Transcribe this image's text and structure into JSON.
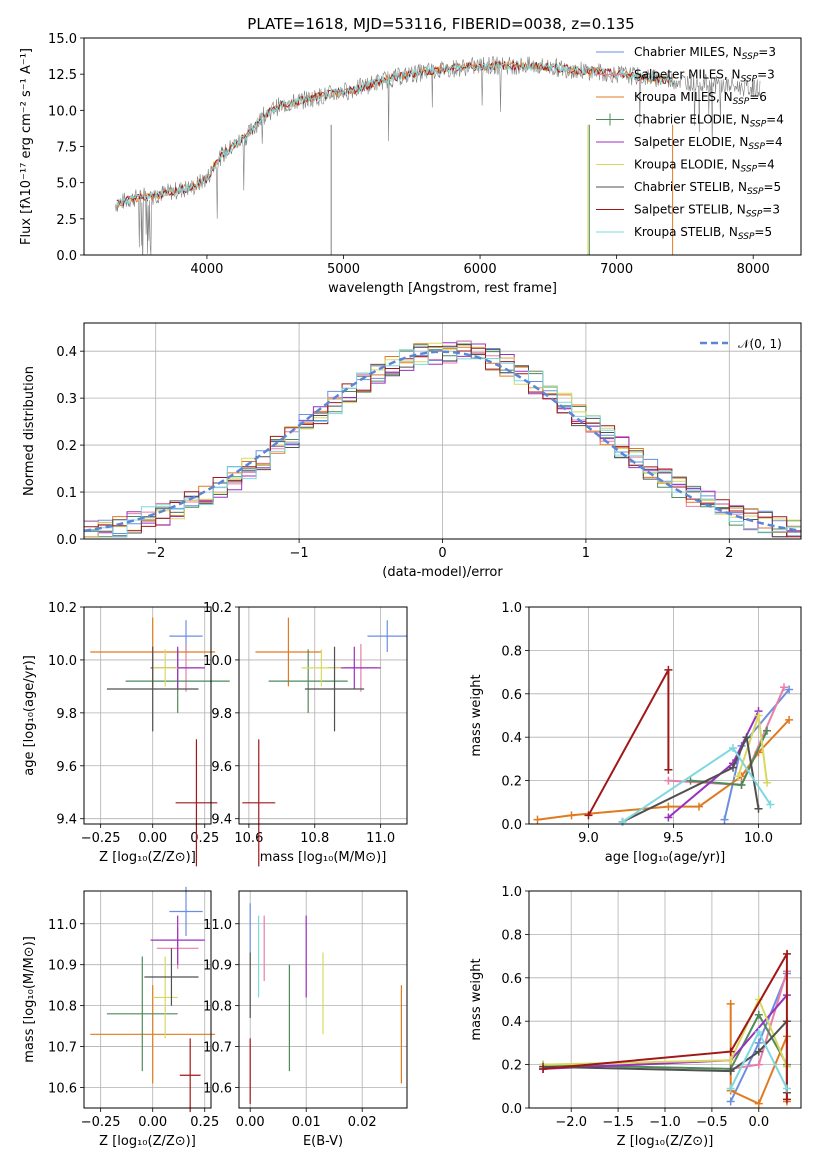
{
  "figure": {
    "title": "PLATE=1618, MJD=53116, FIBERID=0038, z=0.135"
  },
  "colors": {
    "c0": "#6b8fe0",
    "c1": "#e87fa8",
    "c2": "#e07a20",
    "c3": "#4f8a5a",
    "c4": "#9b30c0",
    "c5": "#d8d860",
    "c6": "#505050",
    "c7": "#a01818",
    "c8": "#7fd8e0"
  },
  "chart_data": [
    {
      "id": "spectrum",
      "type": "line",
      "xlabel": "wavelength [Angstrom, rest frame]",
      "ylabel": "Flux [fλ10⁻¹⁷ erg cm⁻² s⁻¹ A⁻¹]",
      "xlim": [
        3100,
        8350
      ],
      "ylim": [
        0,
        15
      ],
      "xticks": [
        "4000",
        "5000",
        "6000",
        "7000",
        "8000"
      ],
      "yticks": [
        "0.0",
        "2.5",
        "5.0",
        "7.5",
        "10.0",
        "12.5",
        "15.0"
      ],
      "continuum": [
        [
          3300,
          3.4
        ],
        [
          3450,
          3.9
        ],
        [
          3600,
          4.1
        ],
        [
          3750,
          4.4
        ],
        [
          3900,
          4.7
        ],
        [
          4000,
          5.3
        ],
        [
          4100,
          6.8
        ],
        [
          4200,
          7.6
        ],
        [
          4300,
          8.3
        ],
        [
          4400,
          9.5
        ],
        [
          4500,
          10.2
        ],
        [
          4700,
          10.7
        ],
        [
          4900,
          11.1
        ],
        [
          5100,
          11.5
        ],
        [
          5300,
          12.1
        ],
        [
          5500,
          12.5
        ],
        [
          5700,
          12.8
        ],
        [
          5900,
          13.0
        ],
        [
          6100,
          13.1
        ],
        [
          6300,
          13.1
        ],
        [
          6500,
          13.0
        ],
        [
          6700,
          12.8
        ],
        [
          6900,
          12.6
        ],
        [
          7100,
          12.4
        ],
        [
          7300,
          12.2
        ],
        [
          7500,
          12.0
        ],
        [
          7700,
          11.8
        ],
        [
          7900,
          11.6
        ],
        [
          8050,
          11.5
        ]
      ],
      "legend": [
        {
          "label": "Chabrier MILES, N",
          "sub": "SSP",
          "tail": "=3"
        },
        {
          "label": "Salpeter MILES, N",
          "sub": "SSP",
          "tail": "=3"
        },
        {
          "label": "Kroupa MILES, N",
          "sub": "SSP",
          "tail": "=6"
        },
        {
          "label": "Chabrier ELODIE, N",
          "sub": "SSP",
          "tail": "=4"
        },
        {
          "label": "Salpeter ELODIE, N",
          "sub": "SSP",
          "tail": "=4"
        },
        {
          "label": "Kroupa ELODIE, N",
          "sub": "SSP",
          "tail": "=4"
        },
        {
          "label": "Chabrier STELIB, N",
          "sub": "SSP",
          "tail": "=5"
        },
        {
          "label": "Salpeter STELIB, N",
          "sub": "SSP",
          "tail": "=3"
        },
        {
          "label": "Kroupa STELIB, N",
          "sub": "SSP",
          "tail": "=5"
        }
      ]
    },
    {
      "id": "residuals",
      "type": "area",
      "xlabel": "(data-model)/error",
      "ylabel": "Normed distribution",
      "xlim": [
        -2.5,
        2.5
      ],
      "ylim": [
        0,
        0.46
      ],
      "xticks": [
        "−2",
        "−1",
        "0",
        "1",
        "2"
      ],
      "yticks": [
        "0.0",
        "0.1",
        "0.2",
        "0.3",
        "0.4"
      ],
      "legend_label": "𝒩(0, 1)",
      "bin_width": 0.1,
      "bin_start": -2.5
    },
    {
      "id": "age-vs-Z",
      "type": "scatter",
      "xlabel": "Z [log₁₀(Z/Z⊙)]",
      "ylabel": "age  [log₁₀(age/yr)]",
      "xlim": [
        -0.33,
        0.28
      ],
      "ylim": [
        9.38,
        10.2
      ],
      "xticks": [
        "−0.25",
        "0.00",
        "0.25"
      ],
      "yticks": [
        "9.4",
        "9.6",
        "9.8",
        "10.0",
        "10.2"
      ],
      "points": [
        {
          "x": 0.16,
          "y": 10.09,
          "ex": 0.08,
          "ey": 0.06,
          "c": "c0"
        },
        {
          "x": 0.16,
          "y": 9.97,
          "ex": 0.07,
          "ey": 0.09,
          "c": "c1"
        },
        {
          "x": 0.0,
          "y": 10.03,
          "ex": 0.3,
          "ey": 0.13,
          "c": "c2"
        },
        {
          "x": 0.12,
          "y": 9.92,
          "ex": 0.25,
          "ey": 0.12,
          "c": "c3"
        },
        {
          "x": 0.12,
          "y": 9.97,
          "ex": 0.13,
          "ey": 0.08,
          "c": "c4"
        },
        {
          "x": 0.06,
          "y": 9.97,
          "ex": 0.06,
          "ey": 0.07,
          "c": "c5"
        },
        {
          "x": 0.0,
          "y": 9.89,
          "ex": 0.22,
          "ey": 0.16,
          "c": "c6"
        },
        {
          "x": 0.21,
          "y": 9.46,
          "ex": 0.1,
          "ey": 0.24,
          "c": "c7"
        }
      ]
    },
    {
      "id": "age-vs-mass",
      "type": "scatter",
      "xlabel": "mass [log₁₀(M/M⊙)]",
      "ylabel": "",
      "xlim": [
        10.57,
        11.08
      ],
      "ylim": [
        9.38,
        10.2
      ],
      "xticks": [
        "10.6",
        "10.8",
        "11.0"
      ],
      "yticks": [
        "9.4",
        "9.6",
        "9.8",
        "10.0",
        "10.2"
      ],
      "points": [
        {
          "x": 11.02,
          "y": 10.09,
          "ex": 0.06,
          "ey": 0.06,
          "c": "c0"
        },
        {
          "x": 10.94,
          "y": 9.97,
          "ex": 0.05,
          "ey": 0.09,
          "c": "c1"
        },
        {
          "x": 10.72,
          "y": 10.03,
          "ex": 0.1,
          "ey": 0.13,
          "c": "c2"
        },
        {
          "x": 10.78,
          "y": 9.92,
          "ex": 0.12,
          "ey": 0.12,
          "c": "c3"
        },
        {
          "x": 10.92,
          "y": 9.97,
          "ex": 0.08,
          "ey": 0.08,
          "c": "c4"
        },
        {
          "x": 10.82,
          "y": 9.97,
          "ex": 0.06,
          "ey": 0.07,
          "c": "c5"
        },
        {
          "x": 10.86,
          "y": 9.89,
          "ex": 0.09,
          "ey": 0.16,
          "c": "c6"
        },
        {
          "x": 10.63,
          "y": 9.46,
          "ex": 0.05,
          "ey": 0.24,
          "c": "c7"
        }
      ]
    },
    {
      "id": "mass-weight-vs-age",
      "type": "line",
      "xlabel": "age  [log₁₀(age/yr)]",
      "ylabel": "mass weight",
      "xlim": [
        8.65,
        10.25
      ],
      "ylim": [
        0,
        1
      ],
      "xticks": [
        "9.0",
        "9.5",
        "10.0"
      ],
      "yticks": [
        "0.0",
        "0.2",
        "0.4",
        "0.6",
        "0.8",
        "1.0"
      ],
      "series": [
        {
          "c": "c0",
          "x": [
            9.8,
            9.9,
            10.18
          ],
          "y": [
            0.02,
            0.36,
            0.62
          ]
        },
        {
          "c": "c1",
          "x": [
            9.47,
            9.9,
            10.15
          ],
          "y": [
            0.2,
            0.18,
            0.63
          ]
        },
        {
          "c": "c2",
          "x": [
            8.7,
            8.9,
            9.47,
            9.65,
            9.9,
            10.0,
            10.18
          ],
          "y": [
            0.02,
            0.04,
            0.08,
            0.08,
            0.22,
            0.33,
            0.48
          ]
        },
        {
          "c": "c3",
          "x": [
            9.6,
            9.9,
            10.05
          ],
          "y": [
            0.2,
            0.18,
            0.43
          ]
        },
        {
          "c": "c4",
          "x": [
            9.47,
            9.85,
            10.0
          ],
          "y": [
            0.03,
            0.28,
            0.52
          ]
        },
        {
          "c": "c5",
          "x": [
            9.88,
            10.0,
            10.05
          ],
          "y": [
            0.22,
            0.5,
            0.19
          ]
        },
        {
          "c": "c6",
          "x": [
            9.2,
            9.85,
            9.93,
            10.0
          ],
          "y": [
            0.01,
            0.26,
            0.4,
            0.07
          ]
        },
        {
          "c": "c7",
          "x": [
            9.0,
            9.47,
            9.47
          ],
          "y": [
            0.04,
            0.71,
            0.25
          ]
        },
        {
          "c": "c8",
          "x": [
            9.2,
            9.85,
            10.07
          ],
          "y": [
            0.01,
            0.35,
            0.09
          ]
        }
      ]
    },
    {
      "id": "mass-vs-Z",
      "type": "scatter",
      "xlabel": "Z [log₁₀(Z/Z⊙)]",
      "ylabel": "mass [log₁₀(M/M⊙)]",
      "xlim": [
        -0.33,
        0.28
      ],
      "ylim": [
        10.55,
        11.08
      ],
      "xticks": [
        "−0.25",
        "0.00",
        "0.25"
      ],
      "yticks": [
        "10.6",
        "10.7",
        "10.8",
        "10.9",
        "11.0"
      ],
      "points": [
        {
          "x": 0.16,
          "y": 11.03,
          "ex": 0.08,
          "ey": 0.06,
          "c": "c0"
        },
        {
          "x": 0.12,
          "y": 10.94,
          "ex": 0.1,
          "ey": 0.05,
          "c": "c1"
        },
        {
          "x": 0.0,
          "y": 10.73,
          "ex": 0.3,
          "ey": 0.12,
          "c": "c2"
        },
        {
          "x": -0.05,
          "y": 10.78,
          "ex": 0.17,
          "ey": 0.14,
          "c": "c3"
        },
        {
          "x": 0.12,
          "y": 10.96,
          "ex": 0.13,
          "ey": 0.06,
          "c": "c4"
        },
        {
          "x": 0.06,
          "y": 10.82,
          "ex": 0.06,
          "ey": 0.1,
          "c": "c5"
        },
        {
          "x": 0.09,
          "y": 10.87,
          "ex": 0.13,
          "ey": 0.07,
          "c": "c6"
        },
        {
          "x": 0.18,
          "y": 10.63,
          "ex": 0.05,
          "ey": 0.09,
          "c": "c7"
        }
      ]
    },
    {
      "id": "mass-vs-EBV",
      "type": "scatter",
      "xlabel": "E(B-V)",
      "ylabel": "",
      "xlim": [
        -0.002,
        0.028
      ],
      "ylim": [
        10.55,
        11.08
      ],
      "xticks": [
        "0.00",
        "0.01",
        "0.02"
      ],
      "yticks": [
        "10.6",
        "10.7",
        "10.8",
        "10.9",
        "11.0"
      ],
      "points": [
        {
          "x": 0.0,
          "y": 10.99,
          "ex": 0,
          "ey": 0.06,
          "c": "c0"
        },
        {
          "x": 0.0015,
          "y": 10.92,
          "ex": 0,
          "ey": 0.1,
          "c": "c8"
        },
        {
          "x": 0.0025,
          "y": 10.94,
          "ex": 0,
          "ey": 0.08,
          "c": "c1"
        },
        {
          "x": 0.027,
          "y": 10.73,
          "ex": 0,
          "ey": 0.12,
          "c": "c2"
        },
        {
          "x": 0.007,
          "y": 10.77,
          "ex": 0,
          "ey": 0.13,
          "c": "c3"
        },
        {
          "x": 0.01,
          "y": 10.92,
          "ex": 0,
          "ey": 0.1,
          "c": "c4"
        },
        {
          "x": 0.013,
          "y": 10.83,
          "ex": 0,
          "ey": 0.1,
          "c": "c5"
        },
        {
          "x": 0.0,
          "y": 10.85,
          "ex": 0,
          "ey": 0.08,
          "c": "c6"
        },
        {
          "x": 0.0,
          "y": 10.64,
          "ex": 0,
          "ey": 0.08,
          "c": "c7"
        }
      ]
    },
    {
      "id": "mass-weight-vs-Z",
      "type": "line",
      "xlabel": "Z [log₁₀(Z/Z⊙)]",
      "ylabel": "mass weight",
      "xlim": [
        -2.45,
        0.45
      ],
      "ylim": [
        0,
        1
      ],
      "xticks": [
        "−2.0",
        "−1.5",
        "−1.0",
        "−0.5",
        "0.0"
      ],
      "yticks": [
        "0.0",
        "0.2",
        "0.4",
        "0.6",
        "0.8",
        "1.0"
      ],
      "series": [
        {
          "c": "c0",
          "x": [
            -0.3,
            0.0,
            0.3
          ],
          "y": [
            0.03,
            0.3,
            0.62
          ]
        },
        {
          "c": "c1",
          "x": [
            -0.3,
            0.0,
            0.3
          ],
          "y": [
            0.18,
            0.2,
            0.63
          ]
        },
        {
          "c": "c2",
          "x": [
            -0.3,
            -0.3,
            0.0,
            0.3,
            0.3
          ],
          "y": [
            0.48,
            0.08,
            0.02,
            0.33,
            0.03
          ]
        },
        {
          "c": "c3",
          "x": [
            -2.3,
            -0.3,
            0.0,
            0.3
          ],
          "y": [
            0.2,
            0.18,
            0.43,
            0.2
          ]
        },
        {
          "c": "c4",
          "x": [
            -2.3,
            -0.3,
            0.3
          ],
          "y": [
            0.18,
            0.22,
            0.52
          ]
        },
        {
          "c": "c5",
          "x": [
            -2.3,
            -0.3,
            0.0,
            0.3
          ],
          "y": [
            0.2,
            0.22,
            0.5,
            0.19
          ]
        },
        {
          "c": "c6",
          "x": [
            -2.3,
            -0.3,
            0.0,
            0.3,
            0.3
          ],
          "y": [
            0.19,
            0.17,
            0.26,
            0.4,
            0.07
          ]
        },
        {
          "c": "c7",
          "x": [
            -2.3,
            -0.3,
            0.3,
            0.3
          ],
          "y": [
            0.18,
            0.26,
            0.71,
            0.04
          ]
        },
        {
          "c": "c8",
          "x": [
            -0.3,
            0.0,
            0.3
          ],
          "y": [
            0.09,
            0.35,
            0.09
          ]
        }
      ]
    }
  ]
}
